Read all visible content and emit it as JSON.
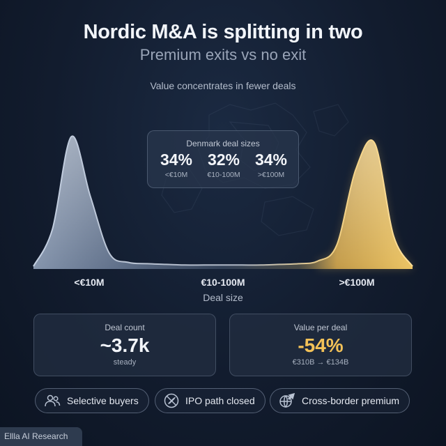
{
  "header": {
    "title": "Nordic M&A is splitting in two",
    "subtitle": "Premium exits vs no exit",
    "tagline": "Value concentrates in fewer deals"
  },
  "denmark_box": {
    "title": "Denmark deal sizes",
    "items": [
      {
        "value": "34%",
        "label": "<€10M"
      },
      {
        "value": "32%",
        "label": "€10-100M"
      },
      {
        "value": "34%",
        "label": ">€100M"
      }
    ]
  },
  "chart_data": {
    "type": "area",
    "title": "",
    "xlabel": "Deal size",
    "ylabel": "",
    "categories": [
      "<€10M",
      "€10-100M",
      ">€100M"
    ],
    "series": [
      {
        "x": [
          0,
          0.05,
          0.1,
          0.15,
          0.2,
          0.25,
          0.3,
          0.35,
          0.4,
          0.45,
          0.5,
          0.55,
          0.6,
          0.65,
          0.7,
          0.75,
          0.8,
          0.85,
          0.9,
          0.95,
          1.0
        ],
        "values": [
          0.02,
          0.3,
          1.0,
          0.55,
          0.12,
          0.05,
          0.04,
          0.035,
          0.03,
          0.03,
          0.03,
          0.03,
          0.03,
          0.035,
          0.04,
          0.06,
          0.18,
          0.75,
          0.95,
          0.25,
          0.02
        ]
      }
    ],
    "colors": {
      "left": "#8fa2bd",
      "right": "#f3c45e"
    },
    "grid": false,
    "legend": "none"
  },
  "cards": {
    "count": {
      "title": "Deal count",
      "value": "~3.7k",
      "sub": "steady"
    },
    "value": {
      "title": "Value per deal",
      "value": "-54%",
      "sub": "€310B → €134B"
    }
  },
  "pills": [
    {
      "label": "Selective buyers",
      "icon": "users-icon"
    },
    {
      "label": "IPO path closed",
      "icon": "blocked-rocket-icon"
    },
    {
      "label": "Cross-border premium",
      "icon": "globe-plane-icon"
    }
  ],
  "footer": {
    "credit": "Ellla AI Research"
  }
}
